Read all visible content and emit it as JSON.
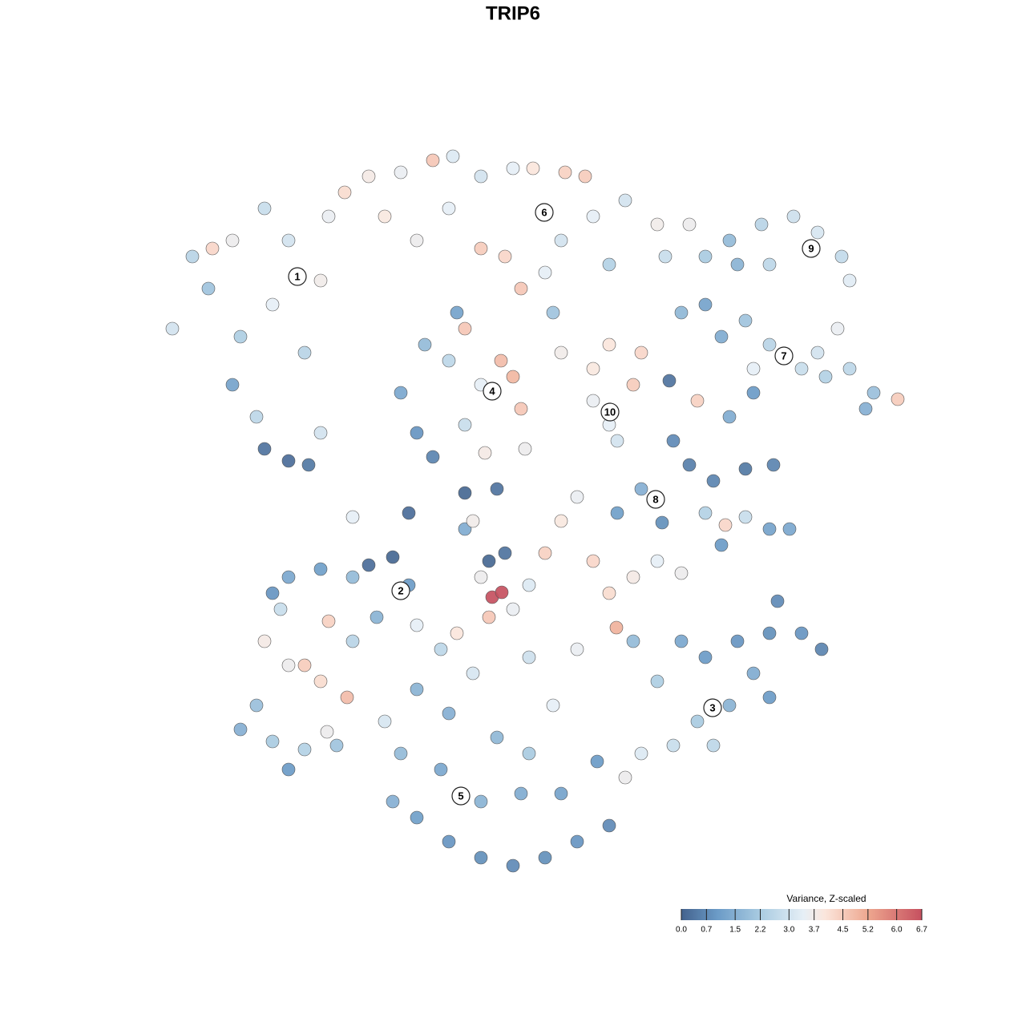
{
  "chart_data": {
    "type": "scatter",
    "title": "TRIP6",
    "xlim": [
      0,
      95
    ],
    "ylim": [
      0,
      92
    ],
    "x": [
      1.5,
      4,
      6,
      9,
      10,
      13,
      14,
      16,
      18,
      20,
      21,
      23,
      9,
      12,
      13,
      16,
      18.5,
      20,
      6.5,
      26,
      30,
      34,
      36.5,
      40,
      44,
      46.5,
      50.5,
      53,
      28,
      32,
      36,
      40,
      43,
      45,
      50,
      54,
      58,
      62,
      63,
      56,
      49,
      48,
      30,
      32,
      34,
      36,
      38,
      40,
      42.5,
      44,
      45,
      40.5,
      38,
      33,
      37,
      45.5,
      50,
      54,
      56,
      59,
      56,
      57,
      60,
      54,
      68,
      71,
      75,
      79,
      82,
      85,
      86,
      84.5,
      76,
      72,
      66,
      65,
      68,
      70,
      73,
      76,
      80,
      83,
      86,
      89,
      92,
      88,
      82,
      74,
      67,
      71,
      74,
      63.5,
      64,
      66,
      69,
      73,
      76.5,
      68,
      70,
      73,
      76,
      78.5,
      60,
      57,
      70.5,
      62.6,
      14,
      16,
      20,
      24,
      26,
      29,
      31,
      15,
      13,
      16,
      18,
      20,
      21,
      23.3,
      24,
      27,
      32,
      38,
      39,
      41,
      43,
      40,
      41.4,
      42.6,
      41,
      37,
      44,
      46,
      48,
      50,
      52,
      54,
      56,
      59,
      62,
      65,
      56.9,
      52,
      46,
      39,
      35,
      49,
      42,
      31,
      24,
      38,
      59,
      62,
      65,
      68,
      72,
      76,
      80,
      82.5,
      77,
      74,
      71,
      67,
      64,
      60,
      58,
      76,
      69,
      28,
      30,
      29,
      32,
      35,
      36,
      40,
      44,
      48,
      52,
      56,
      40,
      45,
      50,
      42,
      36,
      46,
      54.5,
      32,
      10,
      12,
      14,
      16,
      18,
      20.8,
      22
    ],
    "y": [
      69,
      78,
      74,
      80,
      68,
      84,
      72,
      80,
      66,
      75,
      83,
      86,
      62,
      58,
      54,
      52.5,
      52,
      56,
      79,
      88,
      88.5,
      90,
      90.5,
      88,
      89,
      89,
      88.5,
      88,
      83,
      80,
      84,
      79,
      78,
      74,
      80,
      83,
      85,
      82,
      78,
      77,
      71,
      76,
      61,
      56,
      53,
      65,
      69,
      62,
      65,
      63,
      59,
      53.5,
      57,
      67,
      71,
      54,
      66,
      64,
      67,
      62,
      57,
      55,
      66,
      60,
      78,
      80,
      82,
      83,
      81,
      78,
      75,
      69,
      77,
      77,
      82,
      71,
      72,
      68,
      70,
      67,
      64,
      63,
      64,
      61,
      60.2,
      59,
      66,
      64,
      60,
      58,
      61,
      62.5,
      55,
      52,
      50,
      51.5,
      52,
      46,
      42,
      45.5,
      44,
      44,
      49,
      46,
      44.5,
      44.8,
      36,
      38,
      39,
      38,
      39.5,
      40.5,
      37,
      34,
      30,
      27,
      27,
      25,
      32.5,
      23,
      30,
      33,
      32,
      44,
      45,
      40,
      41,
      38,
      35.5,
      36.1,
      33,
      31,
      34,
      37,
      41,
      45,
      48,
      40,
      36,
      38,
      40,
      38.5,
      31.7,
      29,
      28,
      26,
      29,
      22,
      49,
      46,
      45.5,
      48.5,
      30,
      25,
      30,
      28,
      30,
      31,
      31,
      29,
      35,
      26,
      22,
      20,
      17,
      16,
      13,
      23,
      17,
      20,
      16,
      10,
      8,
      14,
      5,
      3,
      2,
      3,
      5,
      7,
      10,
      11,
      11,
      18,
      21,
      16,
      15,
      24,
      19,
      22,
      17.5,
      14,
      16.5,
      18.7,
      17
    ],
    "values": [
      3.0,
      2.5,
      2.0,
      3.6,
      2.3,
      2.8,
      3.4,
      3.0,
      2.5,
      3.7,
      3.5,
      4.2,
      1.2,
      2.6,
      0.3,
      0.2,
      0.4,
      3.0,
      4.3,
      3.8,
      3.5,
      4.6,
      3.2,
      3.0,
      3.4,
      4.0,
      4.4,
      4.5,
      3.9,
      3.6,
      3.4,
      4.5,
      4.3,
      4.6,
      3.0,
      3.4,
      3.0,
      3.7,
      2.8,
      2.4,
      2.0,
      3.4,
      1.3,
      0.9,
      0.6,
      2.6,
      4.6,
      3.4,
      4.8,
      4.9,
      4.6,
      3.8,
      2.8,
      1.8,
      1.2,
      3.6,
      3.7,
      3.9,
      4.0,
      4.5,
      3.4,
      3.0,
      4.3,
      3.5,
      2.2,
      1.8,
      2.5,
      2.9,
      3.1,
      2.7,
      3.3,
      3.5,
      2.6,
      1.6,
      3.6,
      1.7,
      1.2,
      1.4,
      2.0,
      2.5,
      2.8,
      2.4,
      2.6,
      1.9,
      4.5,
      1.5,
      3.0,
      3.4,
      4.4,
      1.4,
      1.0,
      0.3,
      0.7,
      0.5,
      0.6,
      0.4,
      0.6,
      2.4,
      1.0,
      2.8,
      1.2,
      1.3,
      1.5,
      1.1,
      4.3,
      0.8,
      0.9,
      1.3,
      1.1,
      1.8,
      0.2,
      0.1,
      1.0,
      2.8,
      3.8,
      3.6,
      4.5,
      4.2,
      4.4,
      4.8,
      2.5,
      1.6,
      3.4,
      1.4,
      3.7,
      0.1,
      0.3,
      3.6,
      6.7,
      6.7,
      4.6,
      4.0,
      3.5,
      3.2,
      4.4,
      3.9,
      3.5,
      4.3,
      4.2,
      3.8,
      3.4,
      3.6,
      5.0,
      3.5,
      2.9,
      3.1,
      2.6,
      3.4,
      0.3,
      0.2,
      3.4,
      0.1,
      1.8,
      2.3,
      1.3,
      1.0,
      0.9,
      0.8,
      0.9,
      0.6,
      0.7,
      1.4,
      1.6,
      2.2,
      2.8,
      3.2,
      3.6,
      1.0,
      2.6,
      3.1,
      1.8,
      1.5,
      1.1,
      1.3,
      0.9,
      0.8,
      0.7,
      0.8,
      0.9,
      0.7,
      1.6,
      1.4,
      1.2,
      1.7,
      1.5,
      2.2,
      1.0,
      1.6,
      1.5,
      1.9,
      2.2,
      1.0,
      2.4,
      3.6,
      2.0
    ],
    "clusters": [
      {
        "label": "1",
        "x": 17.1,
        "y": 75.5
      },
      {
        "label": "2",
        "x": 30,
        "y": 36.3
      },
      {
        "label": "3",
        "x": 68.9,
        "y": 21.7
      },
      {
        "label": "4",
        "x": 41.4,
        "y": 61.2
      },
      {
        "label": "5",
        "x": 37.5,
        "y": 10.7
      },
      {
        "label": "6",
        "x": 47.9,
        "y": 83.5
      },
      {
        "label": "7",
        "x": 77.8,
        "y": 65.6
      },
      {
        "label": "8",
        "x": 61.8,
        "y": 47.7
      },
      {
        "label": "9",
        "x": 81.2,
        "y": 79
      },
      {
        "label": "10",
        "x": 56.1,
        "y": 58.6
      }
    ],
    "colorbar": {
      "title": "Variance, Z-scaled",
      "lim": [
        0,
        6.7
      ],
      "ticks": [
        {
          "value": 0,
          "label": "0.0"
        },
        0.7,
        1.5,
        2.2,
        {
          "value": 3,
          "label": "3.0"
        },
        3.7,
        4.5,
        5.2,
        {
          "value": 6,
          "label": "6.0"
        },
        6.7
      ],
      "colorscale": [
        [
          0,
          "#43628d"
        ],
        [
          1,
          "#6b9bc7"
        ],
        [
          2.2,
          "#a9cbe1"
        ],
        [
          3.4,
          "#e6eff6"
        ],
        [
          4,
          "#fbe6dc"
        ],
        [
          5.2,
          "#eea78f"
        ],
        [
          6.7,
          "#c6505f"
        ]
      ]
    }
  }
}
